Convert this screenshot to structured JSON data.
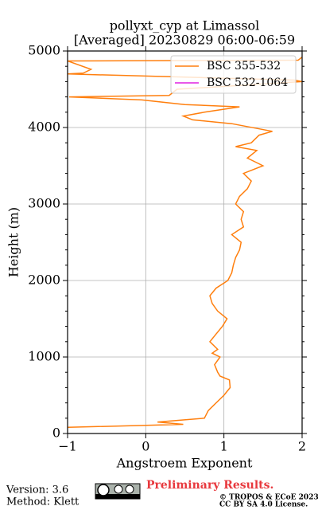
{
  "chart_data": {
    "type": "line",
    "title": "pollyxt_cyp at Limassol",
    "subtitle": "[Averaged] 20230829 06:00-06:59",
    "x_label": "Angstroem Exponent",
    "y_label": "Height (m)",
    "xlim": [
      -1,
      2
    ],
    "ylim": [
      0,
      5000
    ],
    "xticks": [
      {
        "value": -1,
        "label": "−1"
      },
      0,
      1,
      2
    ],
    "yticks": [
      0,
      1000,
      2000,
      3000,
      4000,
      5000
    ],
    "minor_yticks": [
      200,
      400,
      600,
      800,
      1200,
      1400,
      1600,
      1800,
      2200,
      2400,
      2600,
      2800,
      3200,
      3400,
      3600,
      3800,
      4200,
      4400,
      4600,
      4800
    ],
    "grid": true,
    "legend": "upper right",
    "y": [
      80,
      120,
      150,
      200,
      300,
      400,
      500,
      600,
      700,
      750,
      800,
      900,
      1000,
      1050,
      1100,
      1200,
      1300,
      1400,
      1500,
      1600,
      1700,
      1800,
      1900,
      2000,
      2100,
      2200,
      2300,
      2400,
      2500,
      2600,
      2700,
      2800,
      2900,
      3000,
      3100,
      3200,
      3300,
      3400,
      3500,
      3600,
      3700,
      3750,
      3800,
      3900,
      3950,
      4050,
      4100,
      4150,
      4200,
      4270,
      4300,
      4360,
      4400,
      4420,
      4500,
      4600,
      4620,
      4700,
      4710,
      4760,
      4870,
      4880,
      4920
    ],
    "series": [
      {
        "name": "BSC 355-532",
        "color": "#ff7f0e",
        "values": [
          -1.0,
          0.48,
          0.15,
          0.75,
          0.8,
          0.9,
          1.0,
          1.08,
          1.07,
          0.95,
          0.92,
          0.88,
          0.95,
          0.85,
          0.92,
          0.82,
          0.9,
          0.98,
          1.04,
          0.92,
          0.85,
          0.82,
          0.9,
          1.05,
          1.1,
          1.12,
          1.15,
          1.2,
          1.22,
          1.1,
          1.25,
          1.22,
          1.25,
          1.15,
          1.2,
          1.3,
          1.35,
          1.25,
          1.5,
          1.3,
          1.42,
          1.15,
          1.35,
          1.45,
          1.62,
          1.1,
          0.6,
          0.48,
          0.75,
          1.2,
          0.5,
          -0.05,
          -0.98,
          0.3,
          0.4,
          2.0,
          1.9,
          -1.0,
          -0.8,
          -0.7,
          -1.0,
          1.95,
          2.0
        ]
      },
      {
        "name": "BSC 532-1064",
        "color": "#e020e0",
        "values": [
          null,
          null,
          null,
          null,
          null,
          null,
          null,
          null,
          null,
          null,
          null,
          null,
          null,
          null,
          null,
          null,
          null,
          null,
          null,
          null,
          null,
          null,
          null,
          null,
          null,
          null,
          null,
          null,
          null,
          null,
          null,
          null,
          null,
          null,
          null,
          null,
          null,
          null,
          null,
          null,
          null,
          null,
          null,
          null,
          null,
          null,
          null,
          null,
          null,
          null,
          null,
          null,
          null,
          null,
          null,
          null,
          null,
          null,
          null,
          null,
          null,
          null,
          null
        ]
      }
    ]
  },
  "footer": {
    "version": "Version: 3.6",
    "method": "Method: Klett",
    "notice": "Preliminary Results.",
    "copyright": "© TROPOS & ECoE 2023.",
    "license": "CC BY SA 4.0 License."
  }
}
